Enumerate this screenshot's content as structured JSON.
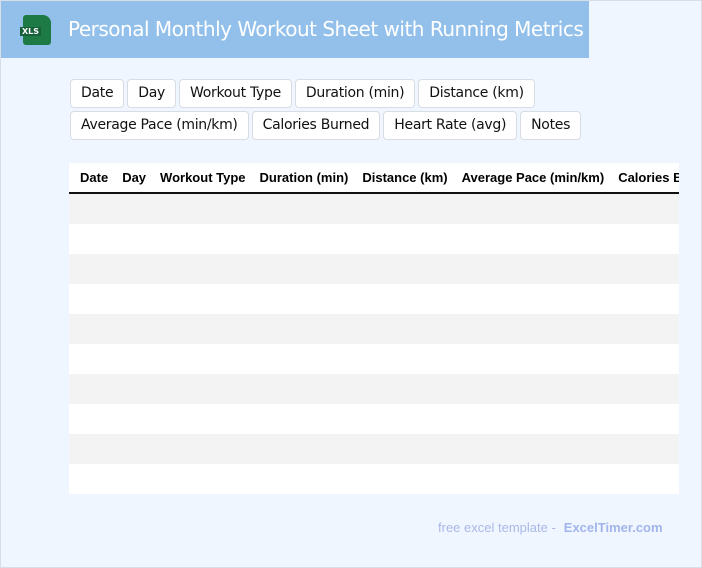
{
  "header": {
    "title": "Personal Monthly Workout Sheet with Running Metrics",
    "icon": "xls-file-icon",
    "icon_label": "XLS"
  },
  "chips": [
    "Date",
    "Day",
    "Workout Type",
    "Duration (min)",
    "Distance (km)",
    "Average Pace (min/km)",
    "Calories Burned",
    "Heart Rate (avg)",
    "Notes"
  ],
  "table": {
    "columns": [
      "Date",
      "Day",
      "Workout Type",
      "Duration (min)",
      "Distance (km)",
      "Average Pace (min/km)",
      "Calories Burned"
    ],
    "rows": 10
  },
  "footer": {
    "text": "free excel template -",
    "brand": "ExcelTimer.com"
  },
  "colors": {
    "header": "#92c0eb",
    "background": "#f0f6ff",
    "icon": "#1e7a44"
  }
}
